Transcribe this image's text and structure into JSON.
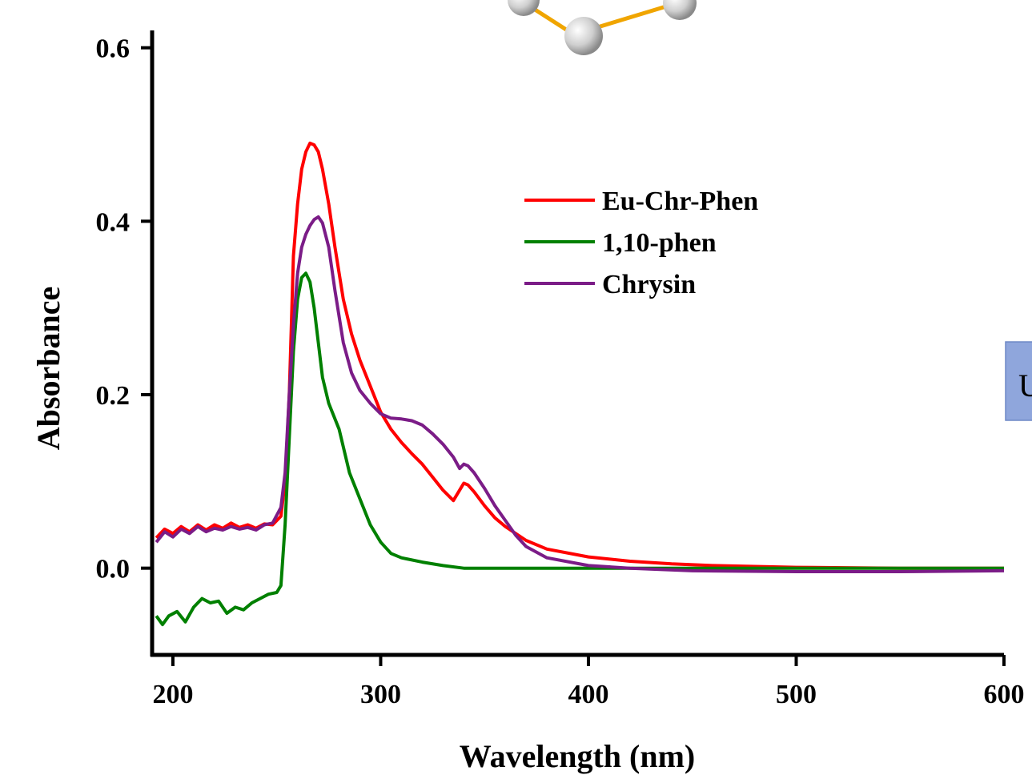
{
  "chart_data": {
    "type": "line",
    "title": "",
    "xlabel": "Wavelength (nm)",
    "ylabel": "Absorbance",
    "xlim": [
      190,
      600
    ],
    "ylim": [
      -0.1,
      0.62
    ],
    "xticks": [
      {
        "value": 200,
        "label": "200"
      },
      {
        "value": 300,
        "label": "300"
      },
      {
        "value": 400,
        "label": "400"
      },
      {
        "value": 500,
        "label": "500"
      },
      {
        "value": 600,
        "label": "600"
      }
    ],
    "yticks": [
      {
        "value": 0.0,
        "label": "0.0"
      },
      {
        "value": 0.2,
        "label": "0.2"
      },
      {
        "value": 0.4,
        "label": "0.4"
      },
      {
        "value": 0.6,
        "label": "0.6"
      }
    ],
    "grid": false,
    "legend_position": "top-center",
    "series": [
      {
        "name": "Eu-Chr-Phen",
        "color": "#ff0000",
        "x": [
          192,
          196,
          200,
          204,
          208,
          212,
          216,
          220,
          224,
          228,
          232,
          236,
          240,
          244,
          248,
          252,
          254,
          256,
          258,
          260,
          262,
          264,
          266,
          268,
          270,
          272,
          275,
          278,
          282,
          286,
          290,
          295,
          300,
          305,
          310,
          315,
          320,
          325,
          330,
          335,
          338,
          340,
          342,
          345,
          350,
          355,
          360,
          370,
          380,
          400,
          420,
          440,
          460,
          480,
          500,
          550,
          600
        ],
        "y": [
          0.035,
          0.045,
          0.04,
          0.048,
          0.042,
          0.05,
          0.044,
          0.05,
          0.046,
          0.052,
          0.047,
          0.05,
          0.046,
          0.051,
          0.05,
          0.06,
          0.1,
          0.2,
          0.36,
          0.42,
          0.46,
          0.48,
          0.49,
          0.488,
          0.48,
          0.46,
          0.42,
          0.37,
          0.31,
          0.27,
          0.24,
          0.21,
          0.18,
          0.16,
          0.145,
          0.132,
          0.12,
          0.105,
          0.09,
          0.078,
          0.09,
          0.098,
          0.096,
          0.088,
          0.072,
          0.058,
          0.048,
          0.032,
          0.022,
          0.013,
          0.008,
          0.005,
          0.003,
          0.002,
          0.001,
          0.0,
          0.0
        ]
      },
      {
        "name": "1,10-phen",
        "color": "#008000",
        "x": [
          192,
          195,
          198,
          202,
          206,
          210,
          214,
          218,
          222,
          226,
          230,
          234,
          238,
          242,
          246,
          250,
          252,
          254,
          256,
          258,
          260,
          262,
          264,
          266,
          268,
          270,
          272,
          275,
          280,
          285,
          290,
          295,
          300,
          305,
          310,
          320,
          330,
          340,
          350,
          400,
          450,
          500,
          550,
          600
        ],
        "y": [
          -0.055,
          -0.065,
          -0.055,
          -0.05,
          -0.062,
          -0.045,
          -0.035,
          -0.04,
          -0.038,
          -0.052,
          -0.045,
          -0.048,
          -0.04,
          -0.035,
          -0.03,
          -0.028,
          -0.02,
          0.05,
          0.15,
          0.25,
          0.31,
          0.335,
          0.34,
          0.33,
          0.3,
          0.26,
          0.22,
          0.19,
          0.16,
          0.11,
          0.08,
          0.05,
          0.03,
          0.017,
          0.012,
          0.007,
          0.003,
          0.0,
          0.0,
          0.0,
          0.0,
          0.0,
          0.0,
          0.0
        ]
      },
      {
        "name": "Chrysin",
        "color": "#7b1c87",
        "x": [
          192,
          196,
          200,
          204,
          208,
          212,
          216,
          220,
          224,
          228,
          232,
          236,
          240,
          244,
          248,
          252,
          254,
          256,
          258,
          260,
          262,
          264,
          266,
          268,
          270,
          272,
          275,
          278,
          282,
          286,
          290,
          295,
          300,
          305,
          310,
          315,
          320,
          325,
          330,
          335,
          338,
          340,
          342,
          345,
          350,
          355,
          360,
          365,
          370,
          380,
          400,
          420,
          450,
          500,
          550,
          600
        ],
        "y": [
          0.03,
          0.042,
          0.036,
          0.045,
          0.04,
          0.048,
          0.042,
          0.046,
          0.044,
          0.048,
          0.045,
          0.047,
          0.044,
          0.05,
          0.052,
          0.07,
          0.11,
          0.2,
          0.28,
          0.34,
          0.37,
          0.385,
          0.395,
          0.402,
          0.405,
          0.398,
          0.37,
          0.32,
          0.26,
          0.225,
          0.205,
          0.19,
          0.178,
          0.173,
          0.172,
          0.17,
          0.165,
          0.155,
          0.143,
          0.128,
          0.115,
          0.12,
          0.118,
          0.11,
          0.092,
          0.072,
          0.055,
          0.038,
          0.025,
          0.012,
          0.003,
          0.0,
          -0.003,
          -0.004,
          -0.004,
          -0.003
        ]
      }
    ]
  }
}
